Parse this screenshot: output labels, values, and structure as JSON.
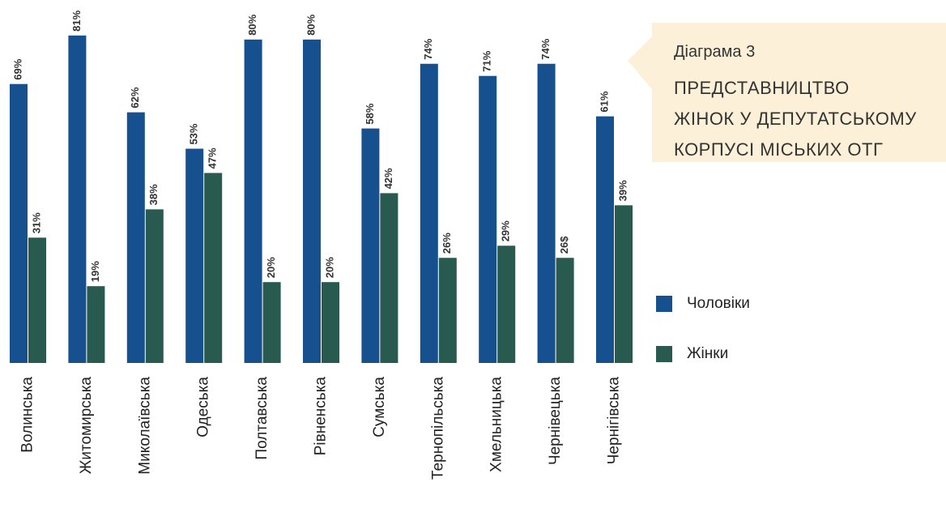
{
  "chart_data": {
    "type": "bar",
    "caption": "Діаграма 3",
    "title": [
      "ПРЕДСТАВНИЦТВО",
      "ЖІНОК У ДЕПУТАТСЬКОМУ",
      "КОРПУСІ МІСЬКИХ ОТГ"
    ],
    "categories": [
      "Волинська",
      "Житомирська",
      "Миколаївська",
      "Одеська",
      "Полтавська",
      "Рівненська",
      "Сумська",
      "Тернопільська",
      "Хмельницька",
      "Чернівецька",
      "Чернігівська"
    ],
    "series": [
      {
        "name": "Чоловіки",
        "color": "#17508f",
        "values": [
          69,
          81,
          62,
          53,
          80,
          80,
          58,
          74,
          71,
          74,
          61
        ],
        "value_labels": [
          "69%",
          "81%",
          "62%",
          "53%",
          "80%",
          "80%",
          "58%",
          "74%",
          "71%",
          "74%",
          "61%"
        ]
      },
      {
        "name": "Жінки",
        "color": "#285a4f",
        "values": [
          31,
          19,
          38,
          47,
          20,
          20,
          42,
          26,
          29,
          26,
          39
        ],
        "value_labels": [
          "31%",
          "19%",
          "38%",
          "47%",
          "20%",
          "20%",
          "42%",
          "26%",
          "29%",
          "26$",
          "39%"
        ]
      }
    ],
    "legend": "right"
  }
}
